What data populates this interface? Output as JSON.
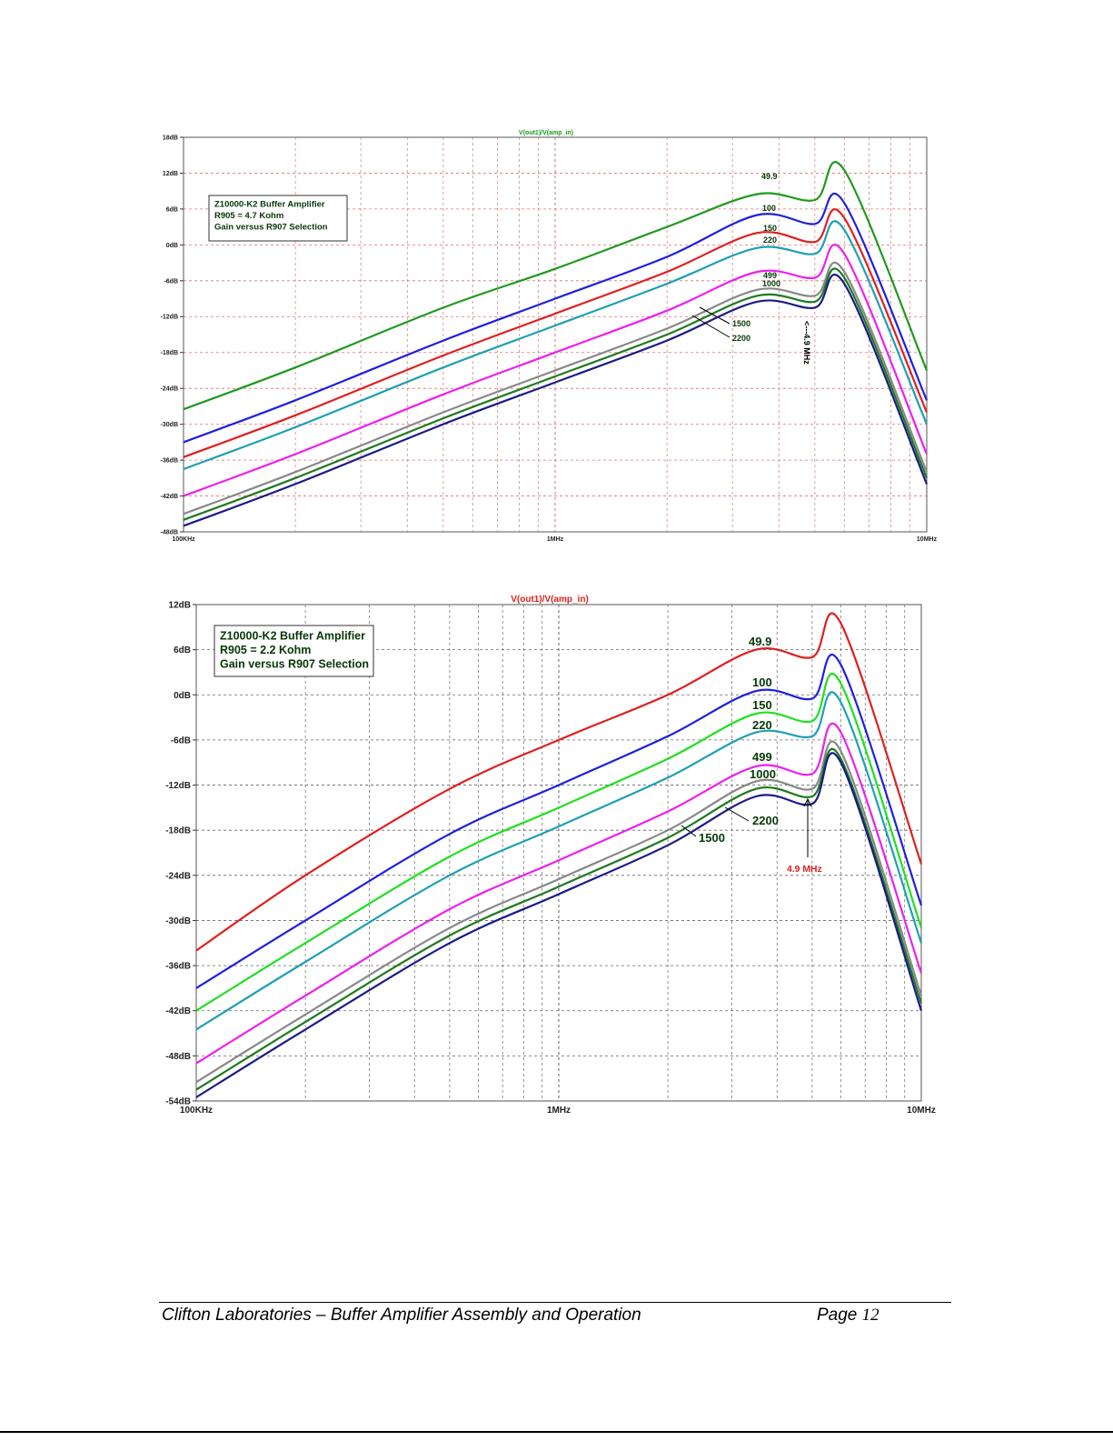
{
  "charts": [
    {
      "title": "V(out1)/V(amp_in)",
      "title_color": "#1a9a1a",
      "grid_style": "red-dashed",
      "y_ticks": [
        "18dB",
        "12dB",
        "6dB",
        "0dB",
        "-6dB",
        "-12dB",
        "-18dB",
        "-24dB",
        "-30dB",
        "-36dB",
        "-42dB",
        "-48dB"
      ],
      "x_ticks": [
        "100KHz",
        "1MHz",
        "10MHz"
      ],
      "legend_box": [
        "Z10000-K2 Buffer Amplifier",
        "R905 = 4.7 Kohm",
        "Gain versus R907 Selection"
      ],
      "annotation": "<---4.9 MHz",
      "annotation_color": "#000000"
    },
    {
      "title": "V(out1)/V(amp_in)",
      "title_color": "#e02020",
      "grid_style": "black-dashed",
      "y_ticks": [
        "12dB",
        "6dB",
        "0dB",
        "-6dB",
        "-12dB",
        "-18dB",
        "-24dB",
        "-30dB",
        "-36dB",
        "-42dB",
        "-48dB",
        "-54dB"
      ],
      "x_ticks": [
        "100KHz",
        "1MHz",
        "10MHz"
      ],
      "legend_box": [
        "Z10000-K2 Buffer Amplifier",
        "R905 = 2.2 Kohm",
        "Gain versus R907 Selection"
      ],
      "annotation": "4.9 MHz",
      "annotation_color": "#e02020"
    }
  ],
  "chart_data": [
    {
      "type": "line",
      "title": "V(out1)/V(amp_in)",
      "xscale": "log",
      "xlim": [
        100000,
        10000000
      ],
      "ylim": [
        -48,
        18
      ],
      "grid": true,
      "legend": "top-left",
      "series": [
        {
          "name": "49.9",
          "color": "#1e9a1e",
          "x": [
            100000,
            200000,
            500000,
            1000000,
            2000000,
            3500000,
            5000000,
            6000000,
            10000000
          ],
          "y": [
            -27.5,
            -20.5,
            -10.5,
            -4,
            3,
            8.5,
            7.5,
            12.5,
            -21
          ]
        },
        {
          "name": "100",
          "color": "#1f1fe0",
          "x": [
            100000,
            200000,
            500000,
            1000000,
            2000000,
            3500000,
            5000000,
            6000000,
            10000000
          ],
          "y": [
            -33,
            -26,
            -16,
            -9,
            -2,
            5,
            3.5,
            7,
            -26
          ]
        },
        {
          "name": "150",
          "color": "#e01f1f",
          "x": [
            100000,
            200000,
            500000,
            1000000,
            2000000,
            3500000,
            5000000,
            6000000,
            10000000
          ],
          "y": [
            -35.5,
            -28.5,
            -18.5,
            -11.5,
            -4.5,
            2,
            0.5,
            4.5,
            -28
          ]
        },
        {
          "name": "220",
          "color": "#1ea0b4",
          "x": [
            100000,
            200000,
            500000,
            1000000,
            2000000,
            3500000,
            5000000,
            6000000,
            10000000
          ],
          "y": [
            -37.5,
            -30.5,
            -20.5,
            -13.5,
            -6.5,
            -0.5,
            -1.5,
            2.5,
            -30
          ]
        },
        {
          "name": "499",
          "color": "#ee1fee",
          "x": [
            100000,
            200000,
            500000,
            1000000,
            2000000,
            3500000,
            5000000,
            6000000,
            10000000
          ],
          "y": [
            -42,
            -35,
            -25,
            -18,
            -11,
            -4.5,
            -5.5,
            -1.5,
            -35
          ]
        },
        {
          "name": "1000",
          "color": "#888888",
          "x": [
            100000,
            200000,
            500000,
            1000000,
            2000000,
            3500000,
            5000000,
            6000000,
            10000000
          ],
          "y": [
            -45,
            -38,
            -28,
            -21,
            -14,
            -7.5,
            -8.5,
            -4.5,
            -38
          ]
        },
        {
          "name": "1500",
          "color": "#1e7a1e",
          "x": [
            100000,
            200000,
            500000,
            1000000,
            2000000,
            3500000,
            5000000,
            6000000,
            10000000
          ],
          "y": [
            -46,
            -39,
            -29,
            -22,
            -15,
            -8.5,
            -9.5,
            -5.5,
            -39
          ]
        },
        {
          "name": "2200",
          "color": "#1a1a8a",
          "x": [
            100000,
            200000,
            500000,
            1000000,
            2000000,
            3500000,
            5000000,
            6000000,
            10000000
          ],
          "y": [
            -47,
            -40,
            -30,
            -23,
            -16,
            -9.5,
            -10.5,
            -6.5,
            -40
          ]
        }
      ]
    },
    {
      "type": "line",
      "title": "V(out1)/V(amp_in)",
      "xscale": "log",
      "xlim": [
        100000,
        10000000
      ],
      "ylim": [
        -54,
        12
      ],
      "grid": true,
      "legend": "top-left",
      "series": [
        {
          "name": "49.9",
          "color": "#e01f1f",
          "x": [
            100000,
            200000,
            500000,
            1000000,
            2000000,
            3500000,
            5000000,
            6000000,
            10000000
          ],
          "y": [
            -34,
            -24,
            -12.5,
            -6,
            0,
            6,
            5,
            9.5,
            -22.5
          ]
        },
        {
          "name": "100",
          "color": "#1f1fe0",
          "x": [
            100000,
            200000,
            500000,
            1000000,
            2000000,
            3500000,
            5000000,
            6000000,
            10000000
          ],
          "y": [
            -39,
            -30,
            -18.5,
            -12,
            -5.5,
            0.5,
            -0.5,
            4,
            -28
          ]
        },
        {
          "name": "150",
          "color": "#1fe01f",
          "x": [
            100000,
            200000,
            500000,
            1000000,
            2000000,
            3500000,
            5000000,
            6000000,
            10000000
          ],
          "y": [
            -42,
            -33,
            -21.5,
            -15,
            -8.5,
            -2.5,
            -3.5,
            1.5,
            -31
          ]
        },
        {
          "name": "220",
          "color": "#1ea0b4",
          "x": [
            100000,
            200000,
            500000,
            1000000,
            2000000,
            3500000,
            5000000,
            6000000,
            10000000
          ],
          "y": [
            -44.5,
            -35.5,
            -24,
            -17.5,
            -11,
            -5,
            -5.5,
            -1,
            -33
          ]
        },
        {
          "name": "499",
          "color": "#ee1fee",
          "x": [
            100000,
            200000,
            500000,
            1000000,
            2000000,
            3500000,
            5000000,
            6000000,
            10000000
          ],
          "y": [
            -49,
            -40,
            -28.5,
            -22,
            -15.5,
            -9.5,
            -10.5,
            -5,
            -37
          ]
        },
        {
          "name": "1000",
          "color": "#888888",
          "x": [
            100000,
            200000,
            500000,
            1000000,
            2000000,
            3500000,
            5000000,
            6000000,
            10000000
          ],
          "y": [
            -51.5,
            -42.5,
            -31,
            -24.5,
            -18,
            -11.5,
            -12.5,
            -7.5,
            -40
          ]
        },
        {
          "name": "1500",
          "color": "#1e7a1e",
          "x": [
            100000,
            200000,
            500000,
            1000000,
            2000000,
            3500000,
            5000000,
            6000000,
            10000000
          ],
          "y": [
            -52.5,
            -43.5,
            -32,
            -25.5,
            -19,
            -12.5,
            -13.5,
            -8.5,
            -41
          ]
        },
        {
          "name": "2200",
          "color": "#1a1a8a",
          "x": [
            100000,
            200000,
            500000,
            1000000,
            2000000,
            3500000,
            5000000,
            6000000,
            10000000
          ],
          "y": [
            -53.5,
            -44.5,
            -33,
            -26.5,
            -20,
            -13.5,
            -14.5,
            -9,
            -42
          ]
        }
      ]
    }
  ],
  "footer": {
    "left": "Clifton Laboratories – Buffer Amplifier Assembly and Operation",
    "page_label": "Page",
    "page_number": "12"
  }
}
